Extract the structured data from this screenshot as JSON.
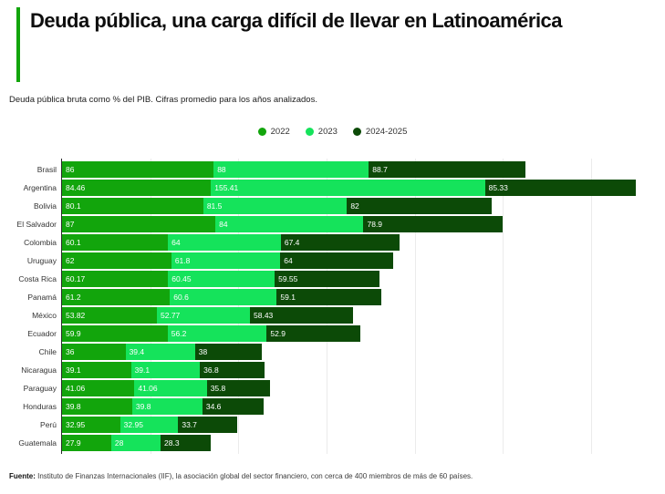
{
  "header": {
    "title": "Deuda pública, una carga difícil de llevar en Latinoamérica",
    "subtitle": "Deuda pública bruta como % del PIB. Cifras promedio para los años analizados.",
    "accent_color": "#12a50c"
  },
  "chart_data": {
    "type": "bar",
    "orientation": "horizontal",
    "stacked": true,
    "title": "Deuda pública, una carga difícil de llevar en Latinoamérica",
    "subtitle": "Deuda pública bruta como % del PIB. Cifras promedio para los años analizados.",
    "categories": [
      "Brasil",
      "Argentina",
      "Bolivia",
      "El Salvador",
      "Colombia",
      "Uruguay",
      "Costa Rica",
      "Panamá",
      "México",
      "Ecuador",
      "Chile",
      "Nicaragua",
      "Paraguay",
      "Honduras",
      "Perú",
      "Guatemala"
    ],
    "series": [
      {
        "name": "2022",
        "color": "#12a50c",
        "values": [
          86,
          84.46,
          80.1,
          87,
          60.1,
          62,
          60.17,
          61.2,
          53.82,
          59.9,
          36,
          39.1,
          41.06,
          39.8,
          32.95,
          27.9
        ]
      },
      {
        "name": "2023",
        "color": "#15e35b",
        "values": [
          88,
          155.41,
          81.5,
          84,
          64,
          61.8,
          60.45,
          60.6,
          52.77,
          56.2,
          39.4,
          39.1,
          41.06,
          39.8,
          32.95,
          28
        ]
      },
      {
        "name": "2024-2025",
        "color": "#0c4a07",
        "values": [
          88.7,
          85.33,
          82,
          78.9,
          67.4,
          64,
          59.55,
          59.1,
          58.43,
          52.9,
          38,
          36.8,
          35.8,
          34.6,
          33.7,
          28.3
        ]
      }
    ],
    "value_labels": "on",
    "xlabel": "",
    "ylabel": "",
    "xlim": [
      0,
      342
    ],
    "gridline_values": [
      50,
      100,
      150,
      200,
      250,
      300
    ],
    "grid": true,
    "legend_position": "top-center"
  },
  "footer": {
    "label": "Fuente:",
    "text": " Instituto de Finanzas Internacionales (IIF), la asociación global del sector financiero, con cerca de 400 miembros de más de 60 países."
  }
}
